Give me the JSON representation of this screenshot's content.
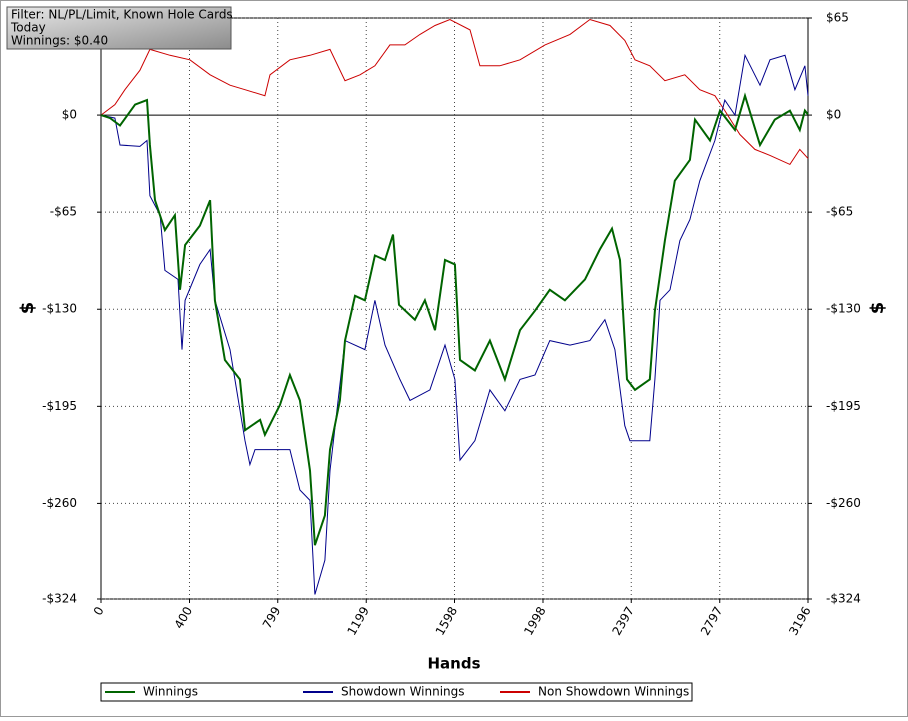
{
  "chart_data": {
    "type": "line",
    "info": [
      "Filter: NL/PL/Limit, Known Hole Cards",
      "Today",
      "Winnings: $0.40"
    ],
    "x_label": "Hands",
    "y_label": "$",
    "y2_label": "$",
    "xlim": [
      0,
      3196
    ],
    "xticks": [
      0,
      400,
      799,
      1199,
      1598,
      1998,
      2397,
      2797,
      3196
    ],
    "ylim": [
      -324,
      65
    ],
    "yticks": [
      {
        "value": -324,
        "label": "-$324"
      },
      {
        "value": -260,
        "label": "-$260"
      },
      {
        "value": -195,
        "label": "-$195"
      },
      {
        "value": -130,
        "label": "-$130"
      },
      {
        "value": -65,
        "label": "-$65"
      },
      {
        "value": 0,
        "label": "$0"
      },
      {
        "value": 65,
        "label": "$65"
      }
    ],
    "grid": true,
    "series": [
      {
        "name": "Winnings",
        "color": "#006400",
        "x": [
          0,
          41,
          86,
          154,
          208,
          221,
          244,
          289,
          334,
          357,
          380,
          447,
          493,
          515,
          560,
          628,
          651,
          719,
          741,
          809,
          854,
          899,
          945,
          967,
          1012,
          1035,
          1080,
          1103,
          1148,
          1193,
          1238,
          1284,
          1320,
          1347,
          1419,
          1464,
          1510,
          1555,
          1600,
          1623,
          1690,
          1758,
          1826,
          1894,
          1962,
          2029,
          2097,
          2188,
          2255,
          2310,
          2346,
          2378,
          2414,
          2481,
          2504,
          2549,
          2594,
          2662,
          2685,
          2753,
          2798,
          2866,
          2911,
          2979,
          3046,
          3114,
          3159,
          3182,
          3196
        ],
        "values": [
          0,
          -2,
          -7,
          7,
          10,
          -20,
          -57,
          -77,
          -67,
          -117,
          -87,
          -74,
          -57,
          -124,
          -164,
          -177,
          -211,
          -204,
          -214,
          -194,
          -174,
          -191,
          -238,
          -288,
          -268,
          -224,
          -191,
          -151,
          -121,
          -124,
          -94,
          -97,
          -80,
          -127,
          -137,
          -124,
          -144,
          -97,
          -100,
          -164,
          -171,
          -151,
          -177,
          -144,
          -131,
          -117,
          -124,
          -110,
          -90,
          -76,
          -97,
          -177,
          -184,
          -177,
          -131,
          -84,
          -44,
          -30,
          -3,
          -17,
          3,
          -10,
          13,
          -20,
          -3,
          3,
          -10,
          3,
          0.4
        ]
      },
      {
        "name": "Showdown Winnings",
        "color": "#00008b",
        "x": [
          0,
          63,
          86,
          176,
          208,
          221,
          267,
          289,
          348,
          366,
          380,
          447,
          493,
          515,
          583,
          651,
          673,
          696,
          854,
          899,
          945,
          967,
          1012,
          1035,
          1103,
          1193,
          1238,
          1284,
          1351,
          1397,
          1487,
          1555,
          1600,
          1623,
          1690,
          1758,
          1826,
          1894,
          1962,
          2029,
          2120,
          2210,
          2278,
          2323,
          2368,
          2391,
          2481,
          2504,
          2527,
          2572,
          2617,
          2662,
          2707,
          2775,
          2820,
          2866,
          2911,
          2979,
          3024,
          3092,
          3137,
          3182,
          3196
        ],
        "values": [
          0,
          -2,
          -20,
          -21,
          -17,
          -54,
          -67,
          -104,
          -110,
          -157,
          -124,
          -100,
          -90,
          -124,
          -157,
          -218,
          -234,
          -224,
          -224,
          -251,
          -258,
          -321,
          -298,
          -238,
          -151,
          -157,
          -124,
          -154,
          -177,
          -191,
          -184,
          -154,
          -177,
          -231,
          -218,
          -184,
          -198,
          -177,
          -174,
          -151,
          -154,
          -151,
          -137,
          -157,
          -208,
          -218,
          -218,
          -177,
          -124,
          -117,
          -84,
          -70,
          -44,
          -17,
          10,
          0,
          40,
          20,
          37,
          40,
          17,
          33,
          13
        ]
      },
      {
        "name": "Non Showdown Winnings",
        "color": "#cc0000",
        "x": [
          0,
          63,
          108,
          176,
          221,
          312,
          402,
          493,
          583,
          651,
          741,
          764,
          854,
          945,
          1035,
          1103,
          1171,
          1238,
          1306,
          1374,
          1442,
          1510,
          1577,
          1668,
          1713,
          1803,
          1894,
          2007,
          2120,
          2210,
          2301,
          2368,
          2414,
          2481,
          2549,
          2639,
          2707,
          2775,
          2820,
          2888,
          2956,
          3024,
          3114,
          3159,
          3196
        ],
        "values": [
          0,
          7,
          17,
          30,
          44,
          40,
          37,
          27,
          20,
          17,
          13,
          27,
          37,
          40,
          44,
          23,
          27,
          33,
          47,
          47,
          54,
          60,
          64,
          57,
          33,
          33,
          37,
          47,
          54,
          64,
          60,
          50,
          37,
          33,
          23,
          27,
          17,
          13,
          3,
          -13,
          -23,
          -27,
          -33,
          -23,
          -29
        ]
      }
    ]
  }
}
